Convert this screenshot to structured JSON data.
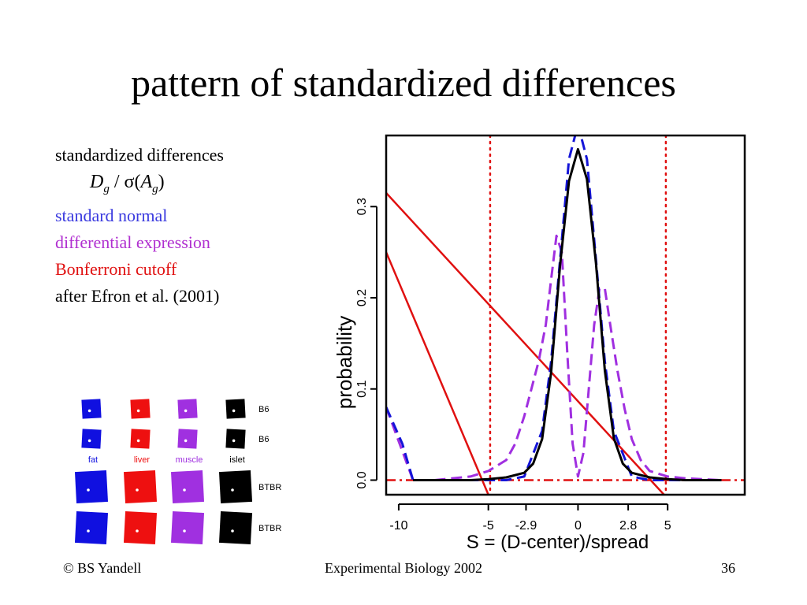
{
  "title": "pattern of standardized differences",
  "legend": {
    "line1": "standardized differences",
    "formula": {
      "D": "D",
      "g1": "g",
      "sep": " / σ(",
      "A": "A",
      "g2": "g",
      "close": ")"
    },
    "standard_normal": "standard normal",
    "differential_expression": "differential expression",
    "bonferroni": "Bonferroni cutoff",
    "citation": "after Efron et al. (2001)"
  },
  "colors": {
    "standard_normal": "#1414d8",
    "differential_expression": "#a02fe0",
    "bonferroni": "#e01010",
    "observed": "#000000"
  },
  "tiles": {
    "columns": [
      "fat",
      "liver",
      "muscle",
      "islet"
    ],
    "column_colors": [
      "#1010e0",
      "#ee1010",
      "#a030e0",
      "#000000"
    ],
    "row_labels": [
      "B6",
      "B6",
      "BTBR",
      "BTBR"
    ]
  },
  "footer": {
    "left": "© BS Yandell",
    "center": "Experimental Biology 2002",
    "right": "36"
  },
  "chart_data": {
    "type": "line",
    "xlabel": "S = (D-center)/spread",
    "ylabel": "probability",
    "xlim": [
      -10.7,
      9.3
    ],
    "ylim": [
      -0.016,
      0.378
    ],
    "x_ticks": [
      -10,
      -5,
      -2.9,
      0,
      2.8,
      5
    ],
    "x_tick_labels": [
      "-10",
      "-5",
      "-2.9",
      "0",
      "2.8",
      "5"
    ],
    "y_ticks": [
      0.0,
      0.1,
      0.2,
      0.3
    ],
    "y_tick_labels": [
      "0.0",
      "0.1",
      "0.2",
      "0.3"
    ],
    "bonferroni_cutoffs": [
      -4.9,
      4.9
    ],
    "series": [
      {
        "key": "observed",
        "style": "solid",
        "x": [
          -9.2,
          -8,
          -6,
          -5,
          -4,
          -3,
          -2.5,
          -2,
          -1.5,
          -1,
          -0.5,
          0,
          0.5,
          1,
          1.5,
          2,
          2.5,
          3,
          4,
          5,
          6,
          8
        ],
        "y": [
          0.0,
          0.0,
          0.0,
          0.001,
          0.003,
          0.008,
          0.018,
          0.045,
          0.118,
          0.236,
          0.328,
          0.363,
          0.33,
          0.238,
          0.12,
          0.046,
          0.018,
          0.008,
          0.003,
          0.001,
          0.0,
          0.0
        ]
      },
      {
        "key": "standard_normal",
        "style": "dashed",
        "x": [
          -10.7,
          -9.8,
          -9.2,
          -8,
          -6,
          -4,
          -3,
          -2,
          -1.5,
          -1,
          -0.5,
          0,
          0.5,
          1,
          1.5,
          2,
          3,
          4,
          6,
          8
        ],
        "y": [
          0.08,
          0.04,
          0.0,
          0.0,
          0.0,
          0.0,
          0.004,
          0.054,
          0.13,
          0.242,
          0.352,
          0.39,
          0.352,
          0.242,
          0.13,
          0.054,
          0.004,
          0.0,
          0.0,
          0.0
        ]
      },
      {
        "key": "differential_expression",
        "style": "dashed",
        "x": [
          -10.7,
          -9.2,
          -8,
          -6,
          -5,
          -4,
          -3.5,
          -3,
          -2.6,
          -2.2,
          -1.8,
          -1.5,
          -1.2,
          -0.9,
          -0.6,
          -0.3,
          0,
          0.3,
          0.6,
          0.9,
          1.2,
          1.5,
          1.8,
          2.2,
          2.6,
          3,
          3.5,
          4,
          5,
          6,
          8
        ],
        "y": [
          0.08,
          0.0,
          0.0,
          0.004,
          0.01,
          0.022,
          0.04,
          0.07,
          0.1,
          0.13,
          0.17,
          0.22,
          0.268,
          0.25,
          0.14,
          0.04,
          0.004,
          0.03,
          0.1,
          0.17,
          0.21,
          0.21,
          0.17,
          0.12,
          0.078,
          0.045,
          0.022,
          0.01,
          0.004,
          0.002,
          0.0
        ]
      }
    ],
    "reference_lines": [
      {
        "key": "bonferroni",
        "style": "solid",
        "x": [
          -10.7,
          -5
        ],
        "y": [
          0.25,
          -0.016
        ]
      },
      {
        "key": "bonferroni",
        "style": "solid",
        "x": [
          -10.7,
          4.8
        ],
        "y": [
          0.315,
          -0.016
        ]
      },
      {
        "key": "bonferroni",
        "style": "dashdot",
        "x": [
          -10.7,
          9.3
        ],
        "y": [
          0.0,
          0.0
        ]
      }
    ]
  }
}
